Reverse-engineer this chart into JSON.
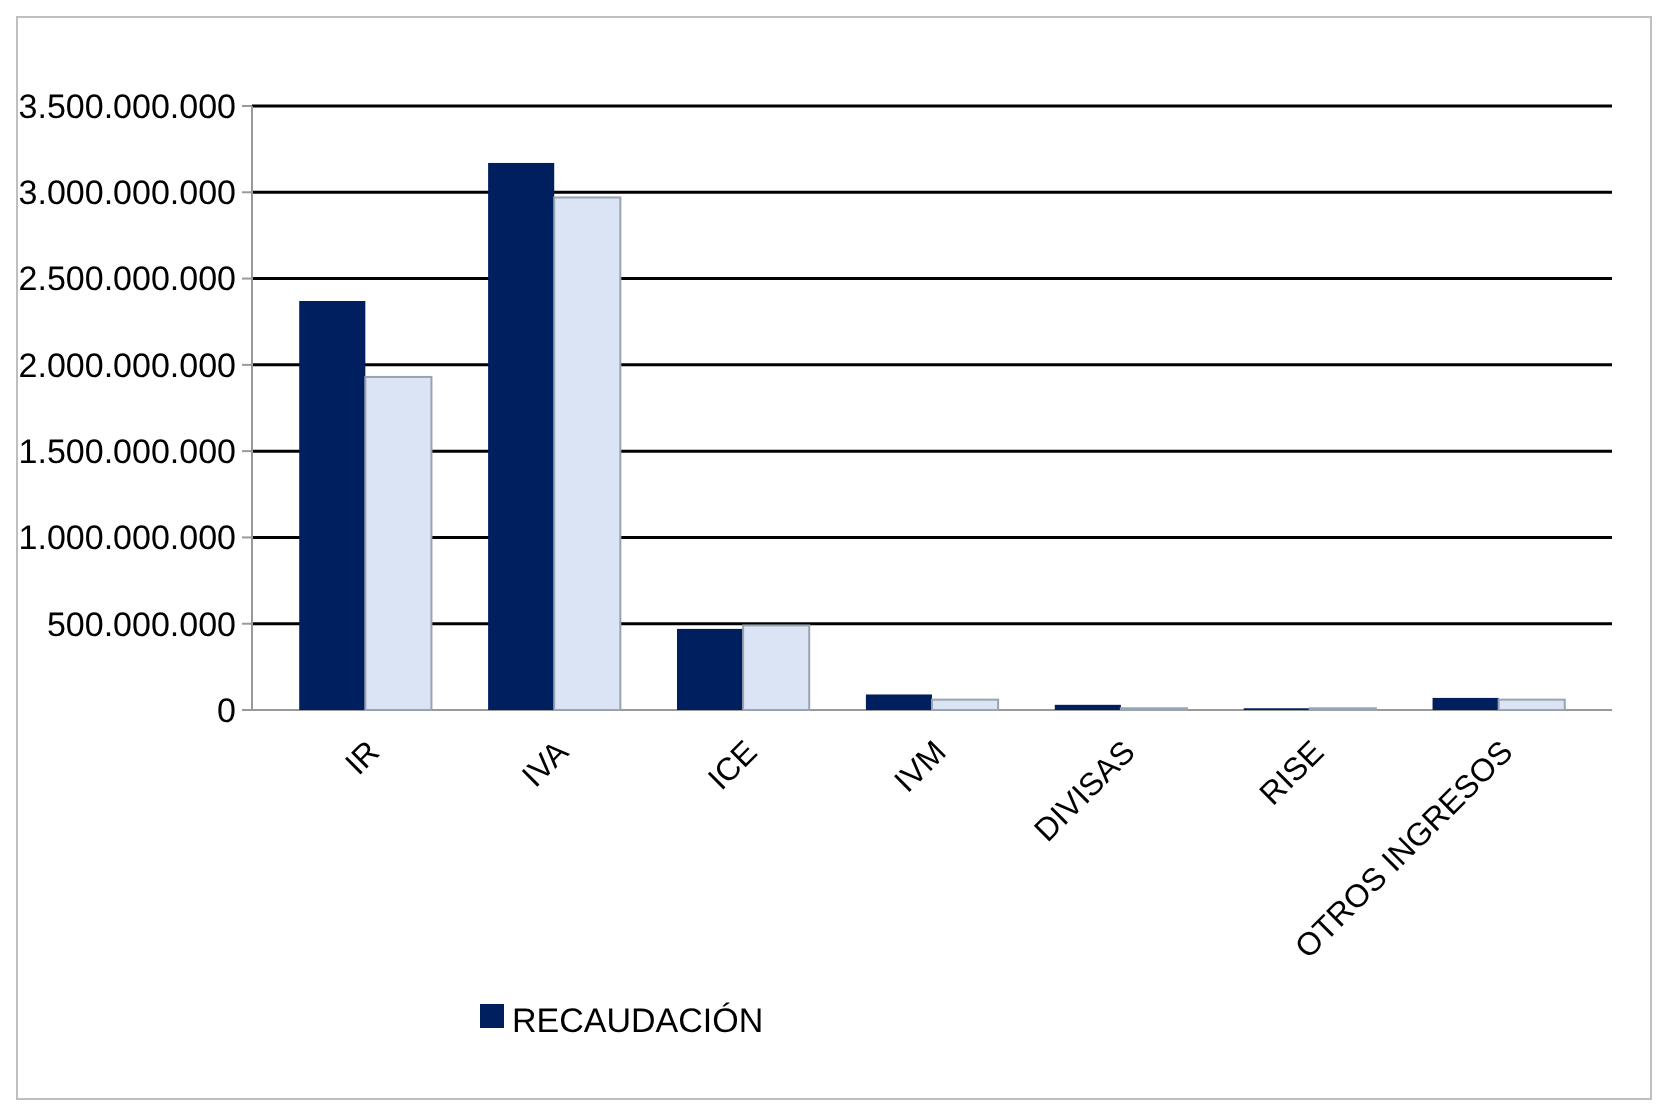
{
  "chart_data": {
    "type": "bar",
    "categories": [
      "IR",
      "IVA",
      "ICE",
      "IVM",
      "DIVISAS",
      "RISE",
      "OTROS INGRESOS"
    ],
    "series": [
      {
        "name": "RECAUDACIÓN",
        "color": "#001f5f",
        "values": [
          2370000000,
          3170000000,
          470000000,
          90000000,
          30000000,
          10000000,
          70000000
        ]
      },
      {
        "color": "#dbe4f5",
        "values": [
          1930000000,
          2970000000,
          490000000,
          60000000,
          10000000,
          10000000,
          60000000
        ]
      }
    ],
    "ylim": [
      0,
      3500000000
    ],
    "yticks": [
      {
        "value": 0,
        "label": "0"
      },
      {
        "value": 500000000,
        "label": "500.000.000"
      },
      {
        "value": 1000000000,
        "label": "1.000.000.000"
      },
      {
        "value": 1500000000,
        "label": "1.500.000.000"
      },
      {
        "value": 2000000000,
        "label": "2.000.000.000"
      },
      {
        "value": 2500000000,
        "label": "2.500.000.000"
      },
      {
        "value": 3000000000,
        "label": "3.000.000.000"
      },
      {
        "value": 3500000000,
        "label": "3.500.000.000"
      }
    ],
    "grid": "y",
    "legend": "bottom left"
  }
}
